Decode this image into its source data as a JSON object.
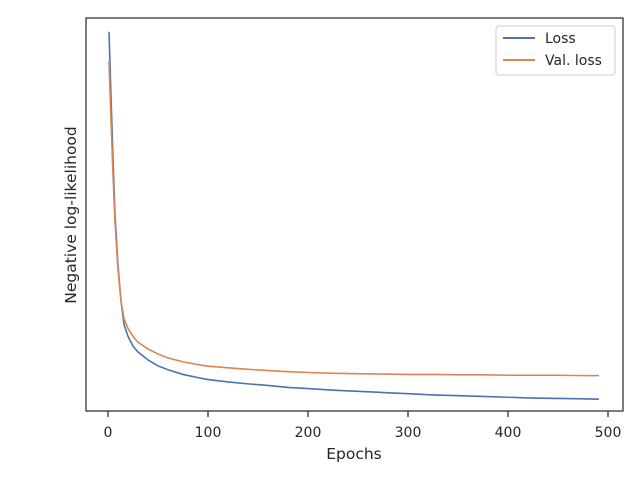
{
  "chart_data": {
    "type": "line",
    "xlabel": "Epochs",
    "ylabel": "Negative log-likelihood",
    "xlim": [
      -22,
      515
    ],
    "ylim": [
      0.0,
      1.0
    ],
    "xticks": [
      0,
      100,
      200,
      300,
      400,
      500
    ],
    "y_tick_labels_shown": false,
    "grid": false,
    "legend_position": "top-right",
    "series": [
      {
        "name": "Loss",
        "color": "#4c72b0",
        "x": [
          1,
          3,
          5,
          7,
          10,
          13,
          16,
          20,
          25,
          30,
          40,
          50,
          60,
          75,
          90,
          100,
          120,
          140,
          160,
          180,
          200,
          225,
          250,
          275,
          300,
          325,
          350,
          375,
          400,
          425,
          450,
          475,
          491
        ],
        "y": [
          0.965,
          0.8,
          0.64,
          0.5,
          0.37,
          0.28,
          0.22,
          0.19,
          0.165,
          0.15,
          0.13,
          0.115,
          0.105,
          0.093,
          0.085,
          0.08,
          0.074,
          0.069,
          0.065,
          0.06,
          0.057,
          0.053,
          0.05,
          0.047,
          0.044,
          0.041,
          0.039,
          0.037,
          0.035,
          0.033,
          0.032,
          0.031,
          0.03
        ]
      },
      {
        "name": "Val. loss",
        "color": "#dd8452",
        "x": [
          1,
          3,
          5,
          7,
          10,
          13,
          16,
          20,
          25,
          30,
          40,
          50,
          60,
          75,
          90,
          100,
          120,
          140,
          160,
          180,
          200,
          225,
          250,
          275,
          300,
          325,
          350,
          375,
          400,
          425,
          450,
          475,
          491
        ],
        "y": [
          0.89,
          0.74,
          0.6,
          0.48,
          0.36,
          0.28,
          0.235,
          0.21,
          0.19,
          0.175,
          0.158,
          0.145,
          0.135,
          0.125,
          0.118,
          0.114,
          0.11,
          0.106,
          0.103,
          0.1,
          0.098,
          0.096,
          0.095,
          0.094,
          0.093,
          0.093,
          0.092,
          0.092,
          0.091,
          0.091,
          0.091,
          0.09,
          0.09
        ]
      }
    ]
  }
}
